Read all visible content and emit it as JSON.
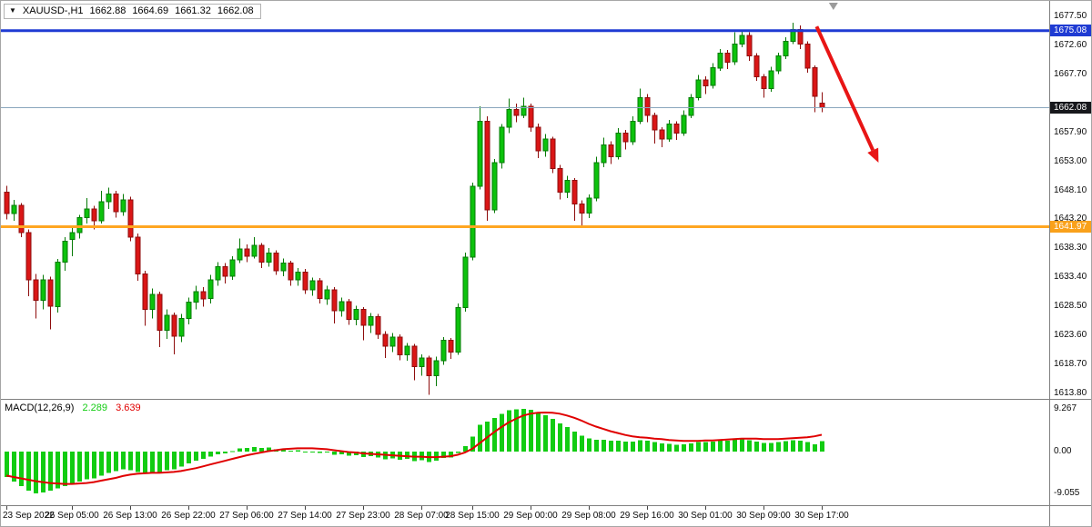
{
  "info_box": {
    "symbol": "XAUUSD-,H1",
    "open": "1662.88",
    "high": "1664.69",
    "low": "1661.32",
    "close": "1662.08"
  },
  "icons": {
    "symbol_dropdown": "▼"
  },
  "macd_info": {
    "name": "MACD(12,26,9)",
    "value_main": "2.289",
    "value_signal": "3.639"
  },
  "colors": {
    "bull": "#0cc20c",
    "bull_border": "#067a06",
    "bear": "#da1616",
    "bear_border": "#8e0c0c",
    "macd_hist": "#12cc12",
    "macd_signal": "#e00000",
    "blue_line": "#1f3bd3",
    "orange_line": "#ffa621",
    "current_price_line": "#8aa6bd",
    "arrow": "#e81515",
    "tag_blue_bg": "#1f3bd3",
    "tag_black_bg": "#17181c",
    "tag_orange_bg": "#f9a11b"
  },
  "chart_data": [
    {
      "type": "candlestick",
      "symbol": "XAUUSD-",
      "timeframe": "H1",
      "price_view": {
        "top": 1680.12,
        "bottom": 1612.88
      },
      "y_axis": [
        {
          "v": 1677.5,
          "label": "1677.50"
        },
        {
          "v": 1672.6,
          "label": "1672.60"
        },
        {
          "v": 1667.7,
          "label": "1667.70"
        },
        {
          "v": 1657.9,
          "label": "1657.90"
        },
        {
          "v": 1653.0,
          "label": "1653.00"
        },
        {
          "v": 1648.1,
          "label": "1648.10"
        },
        {
          "v": 1643.2,
          "label": "1643.20"
        },
        {
          "v": 1638.3,
          "label": "1638.30"
        },
        {
          "v": 1633.4,
          "label": "1633.40"
        },
        {
          "v": 1628.5,
          "label": "1628.50"
        },
        {
          "v": 1623.6,
          "label": "1623.60"
        },
        {
          "v": 1618.7,
          "label": "1618.70"
        },
        {
          "v": 1613.8,
          "label": "1613.80"
        }
      ],
      "price_tags": [
        {
          "v": 1675.08,
          "label": "1675.08",
          "bg": "#1f3bd3"
        },
        {
          "v": 1662.08,
          "label": "1662.08",
          "bg": "#17181c"
        },
        {
          "v": 1641.97,
          "label": "1641.97",
          "bg": "#f9a11b"
        }
      ],
      "hlines": [
        {
          "v": 1675.08,
          "color": "#1f3bd3",
          "w": 3,
          "name": "horizontal-line-1675"
        },
        {
          "v": 1662.08,
          "color": "#8aa6bd",
          "w": 1,
          "name": "current-price-line"
        },
        {
          "v": 1641.97,
          "color": "#ffa621",
          "w": 3,
          "name": "horizontal-line-1642"
        }
      ],
      "arrow": {
        "from": {
          "bar": 111.3,
          "price": 1675.8
        },
        "to": {
          "bar": 119.8,
          "price": 1652.8
        },
        "color": "#e81515",
        "width": 4
      },
      "shift_marker_bar": 113.6,
      "x_labels": [
        {
          "bar": 0,
          "text": "23 Sep 2022"
        },
        {
          "bar": 9,
          "text": "26 Sep 05:00"
        },
        {
          "bar": 17,
          "text": "26 Sep 13:00"
        },
        {
          "bar": 25,
          "text": "26 Sep 22:00"
        },
        {
          "bar": 33,
          "text": "27 Sep 06:00"
        },
        {
          "bar": 41,
          "text": "27 Sep 14:00"
        },
        {
          "bar": 49,
          "text": "27 Sep 23:00"
        },
        {
          "bar": 57,
          "text": "28 Sep 07:00"
        },
        {
          "bar": 64,
          "text": "28 Sep 15:00"
        },
        {
          "bar": 72,
          "text": "29 Sep 00:00"
        },
        {
          "bar": 80,
          "text": "29 Sep 08:00"
        },
        {
          "bar": 88,
          "text": "29 Sep 16:00"
        },
        {
          "bar": 96,
          "text": "30 Sep 01:00"
        },
        {
          "bar": 104,
          "text": "30 Sep 09:00"
        },
        {
          "bar": 112,
          "text": "30 Sep 17:00"
        }
      ],
      "candles": [
        [
          1647.8,
          1648.9,
          1643.2,
          1644.2
        ],
        [
          1644.2,
          1646.5,
          1643.0,
          1645.6
        ],
        [
          1645.6,
          1646.0,
          1640.2,
          1641.0
        ],
        [
          1641.0,
          1641.5,
          1630.2,
          1633.0
        ],
        [
          1633.0,
          1634.0,
          1626.5,
          1629.5
        ],
        [
          1629.5,
          1633.8,
          1628.0,
          1633.0
        ],
        [
          1633.0,
          1633.5,
          1624.6,
          1628.5
        ],
        [
          1628.5,
          1636.5,
          1627.5,
          1636.0
        ],
        [
          1636.0,
          1640.2,
          1634.5,
          1639.5
        ],
        [
          1639.8,
          1641.8,
          1637.0,
          1641.0
        ],
        [
          1641.0,
          1644.0,
          1640.0,
          1643.5
        ],
        [
          1643.5,
          1646.8,
          1642.5,
          1645.0
        ],
        [
          1645.0,
          1645.5,
          1641.5,
          1643.0
        ],
        [
          1643.0,
          1648.0,
          1642.5,
          1646.2
        ],
        [
          1646.2,
          1648.6,
          1645.0,
          1647.5
        ],
        [
          1647.5,
          1648.0,
          1643.5,
          1644.5
        ],
        [
          1644.5,
          1647.5,
          1643.8,
          1646.5
        ],
        [
          1646.5,
          1647.0,
          1639.5,
          1640.2
        ],
        [
          1640.2,
          1640.8,
          1632.8,
          1634.0
        ],
        [
          1634.0,
          1634.5,
          1625.2,
          1628.0
        ],
        [
          1628.0,
          1631.5,
          1626.5,
          1630.5
        ],
        [
          1630.5,
          1631.0,
          1621.6,
          1624.5
        ],
        [
          1624.5,
          1628.0,
          1623.0,
          1627.0
        ],
        [
          1627.0,
          1627.5,
          1620.4,
          1623.5
        ],
        [
          1623.5,
          1627.2,
          1622.5,
          1626.5
        ],
        [
          1626.5,
          1630.0,
          1625.5,
          1629.2
        ],
        [
          1629.2,
          1632.0,
          1628.0,
          1631.0
        ],
        [
          1631.0,
          1631.8,
          1628.5,
          1629.8
        ],
        [
          1629.8,
          1633.8,
          1629.0,
          1633.0
        ],
        [
          1633.0,
          1636.0,
          1632.0,
          1635.2
        ],
        [
          1635.2,
          1635.8,
          1632.4,
          1633.6
        ],
        [
          1633.6,
          1637.0,
          1633.0,
          1636.4
        ],
        [
          1636.4,
          1640.0,
          1635.8,
          1638.2
        ],
        [
          1638.2,
          1639.0,
          1636.0,
          1637.0
        ],
        [
          1637.0,
          1640.2,
          1636.6,
          1638.8
        ],
        [
          1638.8,
          1639.2,
          1635.0,
          1636.0
        ],
        [
          1636.0,
          1638.4,
          1635.2,
          1637.5
        ],
        [
          1637.5,
          1638.0,
          1633.8,
          1634.5
        ],
        [
          1634.5,
          1636.6,
          1633.6,
          1635.8
        ],
        [
          1635.8,
          1636.2,
          1632.0,
          1633.0
        ],
        [
          1633.0,
          1635.0,
          1632.0,
          1634.3
        ],
        [
          1634.3,
          1634.8,
          1630.6,
          1631.3
        ],
        [
          1631.3,
          1633.4,
          1630.3,
          1632.8
        ],
        [
          1632.8,
          1633.3,
          1629.0,
          1629.8
        ],
        [
          1629.8,
          1632.0,
          1628.8,
          1631.3
        ],
        [
          1631.3,
          1631.8,
          1625.6,
          1627.8
        ],
        [
          1627.8,
          1630.0,
          1626.8,
          1629.3
        ],
        [
          1629.3,
          1629.8,
          1625.4,
          1626.3
        ],
        [
          1626.3,
          1628.6,
          1625.3,
          1628.0
        ],
        [
          1628.0,
          1628.4,
          1622.8,
          1625.3
        ],
        [
          1625.3,
          1627.4,
          1624.0,
          1626.8
        ],
        [
          1626.8,
          1627.2,
          1623.0,
          1623.8
        ],
        [
          1623.8,
          1624.3,
          1619.8,
          1621.8
        ],
        [
          1621.8,
          1624.0,
          1620.8,
          1623.3
        ],
        [
          1623.3,
          1623.8,
          1619.4,
          1620.3
        ],
        [
          1620.3,
          1622.3,
          1619.3,
          1621.8
        ],
        [
          1621.8,
          1622.2,
          1616.0,
          1618.3
        ],
        [
          1618.3,
          1620.4,
          1616.8,
          1619.8
        ],
        [
          1619.8,
          1620.2,
          1613.6,
          1616.8
        ],
        [
          1616.8,
          1620.0,
          1615.0,
          1619.3
        ],
        [
          1619.3,
          1623.3,
          1618.6,
          1622.8
        ],
        [
          1622.8,
          1623.2,
          1619.6,
          1620.8
        ],
        [
          1620.8,
          1629.0,
          1620.3,
          1628.3
        ],
        [
          1628.3,
          1637.6,
          1627.6,
          1636.8
        ],
        [
          1636.8,
          1649.4,
          1636.3,
          1648.8
        ],
        [
          1648.8,
          1662.3,
          1648.3,
          1659.8
        ],
        [
          1659.8,
          1660.6,
          1643.0,
          1644.8
        ],
        [
          1644.8,
          1653.4,
          1644.3,
          1652.8
        ],
        [
          1652.8,
          1659.3,
          1651.8,
          1658.8
        ],
        [
          1658.8,
          1663.6,
          1657.8,
          1661.8
        ],
        [
          1661.8,
          1662.8,
          1659.6,
          1660.8
        ],
        [
          1660.8,
          1663.8,
          1660.3,
          1662.3
        ],
        [
          1662.3,
          1662.8,
          1658.0,
          1658.8
        ],
        [
          1658.8,
          1659.4,
          1653.6,
          1654.8
        ],
        [
          1654.8,
          1657.6,
          1653.8,
          1656.8
        ],
        [
          1656.8,
          1657.2,
          1651.0,
          1651.8
        ],
        [
          1651.8,
          1652.4,
          1646.6,
          1647.8
        ],
        [
          1647.8,
          1650.6,
          1646.8,
          1649.8
        ],
        [
          1649.8,
          1650.2,
          1643.0,
          1645.8
        ],
        [
          1645.8,
          1646.4,
          1641.8,
          1644.3
        ],
        [
          1644.3,
          1647.4,
          1643.4,
          1646.8
        ],
        [
          1646.8,
          1653.8,
          1646.3,
          1652.8
        ],
        [
          1652.8,
          1657.0,
          1652.0,
          1655.8
        ],
        [
          1655.8,
          1656.4,
          1652.6,
          1653.8
        ],
        [
          1653.8,
          1658.6,
          1653.3,
          1657.8
        ],
        [
          1657.8,
          1658.3,
          1655.0,
          1656.3
        ],
        [
          1656.3,
          1660.6,
          1655.8,
          1659.8
        ],
        [
          1659.8,
          1665.3,
          1659.3,
          1663.8
        ],
        [
          1663.8,
          1664.4,
          1659.6,
          1660.8
        ],
        [
          1660.8,
          1661.2,
          1656.0,
          1658.3
        ],
        [
          1658.3,
          1658.8,
          1655.4,
          1656.8
        ],
        [
          1656.8,
          1660.0,
          1656.3,
          1659.3
        ],
        [
          1659.3,
          1659.8,
          1656.6,
          1657.8
        ],
        [
          1657.8,
          1661.6,
          1657.3,
          1660.8
        ],
        [
          1660.8,
          1664.4,
          1660.3,
          1663.8
        ],
        [
          1663.8,
          1667.6,
          1663.3,
          1666.8
        ],
        [
          1666.8,
          1667.4,
          1664.4,
          1665.8
        ],
        [
          1665.8,
          1669.6,
          1665.3,
          1668.8
        ],
        [
          1668.8,
          1672.0,
          1668.3,
          1671.3
        ],
        [
          1671.3,
          1671.8,
          1668.6,
          1669.8
        ],
        [
          1669.8,
          1674.8,
          1669.3,
          1672.8
        ],
        [
          1672.8,
          1675.3,
          1672.3,
          1674.3
        ],
        [
          1674.3,
          1674.8,
          1670.0,
          1670.8
        ],
        [
          1670.8,
          1671.3,
          1666.6,
          1667.3
        ],
        [
          1667.3,
          1667.8,
          1663.8,
          1665.3
        ],
        [
          1665.3,
          1669.0,
          1664.8,
          1668.3
        ],
        [
          1668.3,
          1671.4,
          1667.8,
          1670.8
        ],
        [
          1670.8,
          1674.0,
          1670.3,
          1673.3
        ],
        [
          1673.3,
          1676.4,
          1672.8,
          1675.3
        ],
        [
          1675.3,
          1676.0,
          1672.0,
          1672.8
        ],
        [
          1672.8,
          1673.3,
          1668.0,
          1668.8
        ],
        [
          1668.8,
          1669.2,
          1661.3,
          1664.0
        ],
        [
          1662.88,
          1664.69,
          1661.32,
          1662.08
        ]
      ]
    },
    {
      "type": "macd",
      "params": "MACD(12,26,9)",
      "last_values": {
        "macd": 2.289,
        "signal": 3.639
      },
      "view": {
        "top": 11.2,
        "bottom": -11.6
      },
      "y_axis": [
        {
          "v": 9.267,
          "label": "9.267"
        },
        {
          "v": 0,
          "label": "0.00"
        },
        {
          "v": -9.055,
          "label": "-9.055"
        }
      ],
      "histogram": [
        -5.5,
        -6.5,
        -7.5,
        -8.5,
        -9.0,
        -8.8,
        -8.5,
        -8.0,
        -7.5,
        -7.0,
        -6.5,
        -6.0,
        -5.8,
        -5.2,
        -4.6,
        -4.2,
        -3.8,
        -4.0,
        -4.4,
        -4.8,
        -4.5,
        -4.6,
        -4.0,
        -3.8,
        -3.2,
        -2.6,
        -2.0,
        -1.6,
        -1.1,
        -0.6,
        -0.4,
        0.1,
        0.7,
        0.8,
        1.0,
        0.8,
        0.9,
        0.5,
        0.5,
        0.2,
        0.3,
        -0.1,
        0.0,
        -0.3,
        -0.2,
        -0.7,
        -0.6,
        -0.9,
        -0.8,
        -1.2,
        -1.0,
        -1.3,
        -1.7,
        -1.5,
        -1.8,
        -1.6,
        -2.1,
        -1.9,
        -2.3,
        -2.0,
        -1.4,
        -1.3,
        -0.3,
        1.2,
        3.2,
        5.8,
        6.5,
        7.3,
        8.2,
        8.9,
        9.1,
        9.267,
        9.0,
        8.4,
        7.9,
        7.1,
        6.1,
        5.3,
        4.3,
        3.4,
        2.8,
        2.6,
        2.6,
        2.4,
        2.4,
        2.2,
        2.2,
        2.5,
        2.4,
        2.1,
        1.8,
        1.7,
        1.5,
        1.6,
        1.8,
        2.1,
        2.1,
        2.2,
        2.4,
        2.4,
        2.6,
        2.7,
        2.5,
        2.2,
        1.9,
        1.9,
        2.1,
        2.3,
        2.5,
        2.4,
        2.1,
        1.6,
        2.289
      ],
      "signal": [
        -5.2,
        -5.5,
        -5.8,
        -6.1,
        -6.4,
        -6.6,
        -6.8,
        -6.9,
        -7.0,
        -7.0,
        -6.9,
        -6.8,
        -6.6,
        -6.3,
        -6.0,
        -5.7,
        -5.3,
        -5.0,
        -4.8,
        -4.7,
        -4.6,
        -4.6,
        -4.5,
        -4.4,
        -4.2,
        -3.9,
        -3.6,
        -3.2,
        -2.8,
        -2.4,
        -2.0,
        -1.6,
        -1.2,
        -0.8,
        -0.5,
        -0.2,
        0.1,
        0.3,
        0.5,
        0.6,
        0.7,
        0.7,
        0.7,
        0.6,
        0.5,
        0.3,
        0.1,
        -0.1,
        -0.2,
        -0.4,
        -0.5,
        -0.6,
        -0.7,
        -0.8,
        -0.9,
        -1.0,
        -1.1,
        -1.1,
        -1.2,
        -1.2,
        -1.1,
        -1.0,
        -0.7,
        -0.2,
        0.6,
        1.8,
        3.0,
        4.2,
        5.3,
        6.3,
        7.1,
        7.8,
        8.2,
        8.4,
        8.45,
        8.4,
        8.2,
        7.8,
        7.3,
        6.7,
        6.0,
        5.4,
        4.9,
        4.4,
        4.0,
        3.6,
        3.3,
        3.1,
        3.0,
        2.8,
        2.7,
        2.5,
        2.4,
        2.3,
        2.3,
        2.3,
        2.4,
        2.4,
        2.5,
        2.6,
        2.7,
        2.8,
        2.8,
        2.8,
        2.7,
        2.7,
        2.7,
        2.8,
        2.9,
        3.0,
        3.1,
        3.3,
        3.639
      ]
    }
  ]
}
